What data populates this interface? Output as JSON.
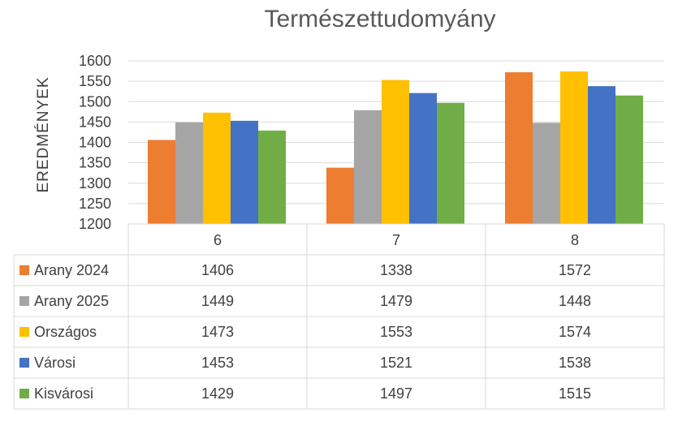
{
  "chart_data": {
    "type": "bar",
    "title": "Természettudomyány",
    "ylabel": "EREDMÉNYEK",
    "xlabel": "",
    "categories": [
      "6",
      "7",
      "8"
    ],
    "ylim": [
      1200,
      1600
    ],
    "yticks": [
      1200,
      1250,
      1300,
      1350,
      1400,
      1450,
      1500,
      1550,
      1600
    ],
    "grid": true,
    "legend": "data-table-left",
    "series": [
      {
        "name": "Arany 2024",
        "color": "#ED7D31",
        "values": [
          1406,
          1338,
          1572
        ]
      },
      {
        "name": "Arany 2025",
        "color": "#A5A5A5",
        "values": [
          1449,
          1479,
          1448
        ]
      },
      {
        "name": "Országos",
        "color": "#FFC000",
        "values": [
          1473,
          1553,
          1574
        ]
      },
      {
        "name": "Városi",
        "color": "#4472C4",
        "values": [
          1453,
          1521,
          1538
        ]
      },
      {
        "name": "Kisvárosi",
        "color": "#70AD47",
        "values": [
          1429,
          1497,
          1515
        ]
      }
    ]
  }
}
